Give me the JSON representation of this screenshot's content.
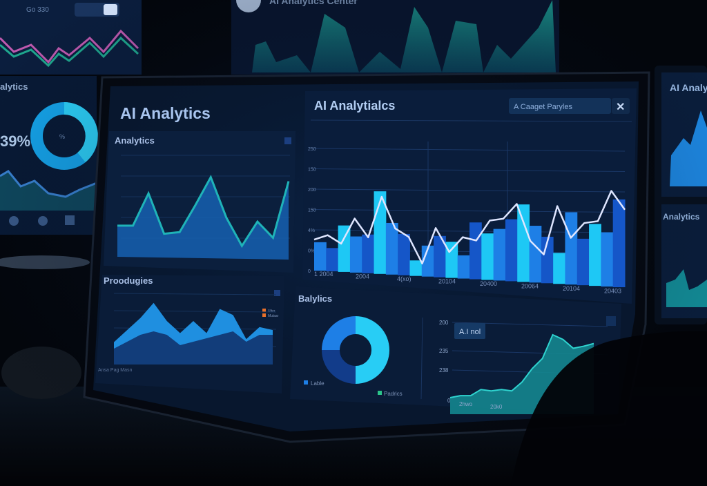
{
  "colors": {
    "background": "#03060c",
    "screen": "#0a1a33",
    "panel": "#0c2140",
    "bar_light": "#1ec8f5",
    "bar_mid": "#1e7fe6",
    "bar_dark": "#1556c8",
    "line": "#dfe6ff",
    "teal": "#1fb3b8",
    "accent_orange": "#e8702a"
  },
  "bg_left_monitor": {
    "top_label": "Go 330",
    "section_title": "alytics",
    "percent": "39%",
    "donut_center": "%"
  },
  "bg_top_monitor": {
    "title": "AI Analytics Center"
  },
  "bg_right_monitor": {
    "title": "AI Analy",
    "panel_title": "Analytics"
  },
  "main_screen": {
    "title": "AI Analytics",
    "panel_analytics": {
      "title": "Analytics",
      "values": [
        30,
        30,
        70,
        20,
        22,
        55,
        90,
        40,
        5,
        35,
        15,
        85
      ]
    },
    "panel_products": {
      "title": "Proodugies",
      "footer": "Ansa Pag Masn",
      "legend": [
        "Ulter",
        "Mulaar"
      ],
      "series_a": [
        5,
        25,
        45,
        70,
        40,
        20,
        40,
        20,
        60,
        50,
        10,
        30,
        25
      ],
      "series_b": [
        5,
        15,
        25,
        30,
        25,
        10,
        15,
        20,
        25,
        30,
        15,
        25,
        25
      ]
    },
    "main_chart": {
      "title": "AI Analytialcs",
      "search_value": "A Caaget Paryles",
      "close_icon": "close-icon",
      "y_ticks": [
        "250",
        "150",
        "200",
        "150",
        "4%",
        "0%",
        "0"
      ],
      "x_ticks": [
        "1 2004",
        "2004",
        "4(xo)",
        "20104",
        "20400",
        "20064",
        "20104",
        "20403"
      ],
      "bars": [
        55,
        45,
        90,
        70,
        75,
        160,
        100,
        80,
        30,
        60,
        80,
        70,
        45,
        110,
        90,
        100,
        120,
        150,
        110,
        90,
        60,
        140,
        90,
        120,
        105,
        170
      ],
      "line": [
        60,
        70,
        55,
        105,
        70,
        150,
        90,
        75,
        25,
        95,
        50,
        80,
        75,
        115,
        120,
        150,
        80,
        55,
        150,
        90,
        120,
        125,
        185,
        150
      ]
    },
    "panel_balytics": {
      "title": "Balylics",
      "donut_legend": [
        "Lable",
        "Padrics"
      ],
      "donut_slices": [
        25,
        25,
        50
      ],
      "tooltip": "A.I nol",
      "y_ticks": [
        "200",
        "235",
        "238",
        "0"
      ],
      "x_ticks": [
        "2hwo",
        "20k0"
      ],
      "area": [
        2,
        5,
        5,
        14,
        12,
        14,
        12,
        25,
        45,
        60,
        95,
        88,
        75,
        78,
        82
      ]
    }
  }
}
